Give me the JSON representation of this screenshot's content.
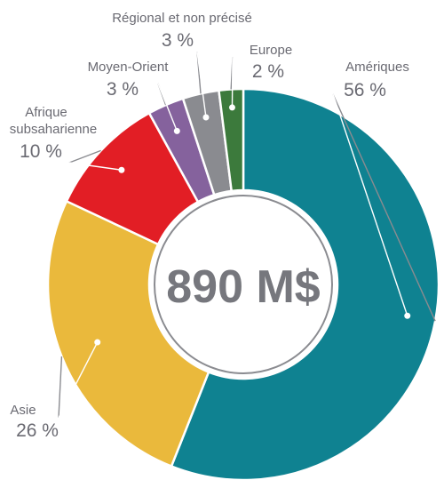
{
  "chart_data": {
    "type": "pie",
    "center_label": "890 M$",
    "slices": [
      {
        "name": "Amériques",
        "label": "56 %",
        "value": 56,
        "color": "#0f8291"
      },
      {
        "name": "Asie",
        "label": "26 %",
        "value": 26,
        "color": "#eab93c"
      },
      {
        "name": "Afrique subsaharienne",
        "name_lines": [
          "Afrique",
          "subsaharienne"
        ],
        "label": "10 %",
        "value": 10,
        "color": "#e21e25"
      },
      {
        "name": "Moyen-Orient",
        "label": "3 %",
        "value": 3,
        "color": "#85629d"
      },
      {
        "name": "Régional et non précisé",
        "label": "3 %",
        "value": 3,
        "color": "#8a8b90"
      },
      {
        "name": "Europe",
        "label": "2 %",
        "value": 2,
        "color": "#3c7a3c"
      }
    ]
  }
}
